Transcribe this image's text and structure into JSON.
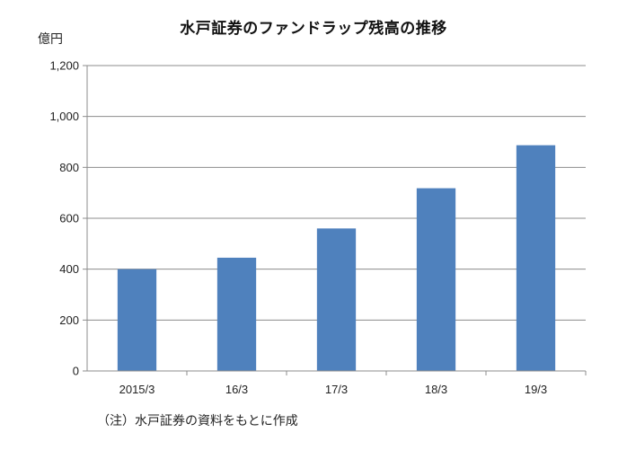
{
  "chart_data": {
    "type": "bar",
    "title": "水戸証券のファンドラップ残高の推移",
    "unit": "億円",
    "xlabel": "",
    "ylabel": "",
    "categories": [
      "2015/3",
      "16/3",
      "17/3",
      "18/3",
      "19/3"
    ],
    "values": [
      400,
      445,
      560,
      718,
      887
    ],
    "ylim": [
      0,
      1200
    ],
    "yticks": [
      0,
      200,
      400,
      600,
      800,
      1000,
      1200
    ],
    "ytick_labels": [
      "0",
      "200",
      "400",
      "600",
      "800",
      "1,000",
      "1,200"
    ],
    "grid": true,
    "legend": "none",
    "bar_color": "#4f81bd",
    "note": "（注）水戸証券の資料をもとに作成"
  }
}
